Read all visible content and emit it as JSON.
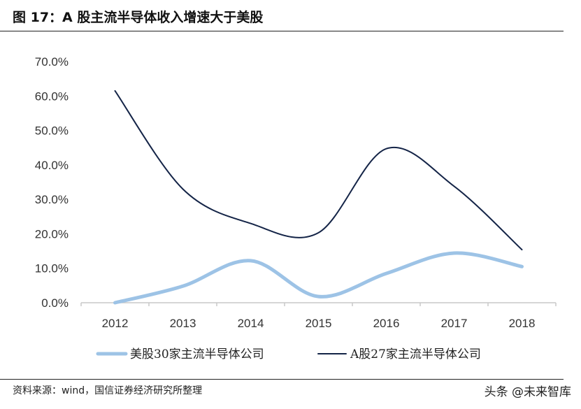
{
  "figure": {
    "title": "图 17：A 股主流半导体收入增速大于美股",
    "source": "资料来源：wind，国信证券经济研究所整理",
    "watermark": "头条 @未来智库"
  },
  "colors": {
    "us_series": "#9dc3e6",
    "a_series": "#142447",
    "axis": "#c8c8c8"
  },
  "chart_data": {
    "type": "line",
    "categories": [
      "2012",
      "2013",
      "2014",
      "2015",
      "2016",
      "2017",
      "2018"
    ],
    "y_ticks": [
      "0.0%",
      "10.0%",
      "20.0%",
      "30.0%",
      "40.0%",
      "50.0%",
      "60.0%",
      "70.0%"
    ],
    "ylim": [
      0,
      70
    ],
    "title": "",
    "xlabel": "",
    "ylabel": "",
    "grid": false,
    "smooth": true,
    "legend_position": "bottom",
    "series": [
      {
        "name": "美股30家主流半导体公司",
        "color": "#9dc3e6",
        "values": [
          0.0,
          4.8,
          12.2,
          1.8,
          8.5,
          14.4,
          10.5
        ]
      },
      {
        "name": "A股27家主流半导体公司",
        "color": "#142447",
        "values": [
          61.5,
          33.0,
          23.0,
          20.3,
          44.7,
          33.8,
          15.4
        ]
      }
    ]
  }
}
